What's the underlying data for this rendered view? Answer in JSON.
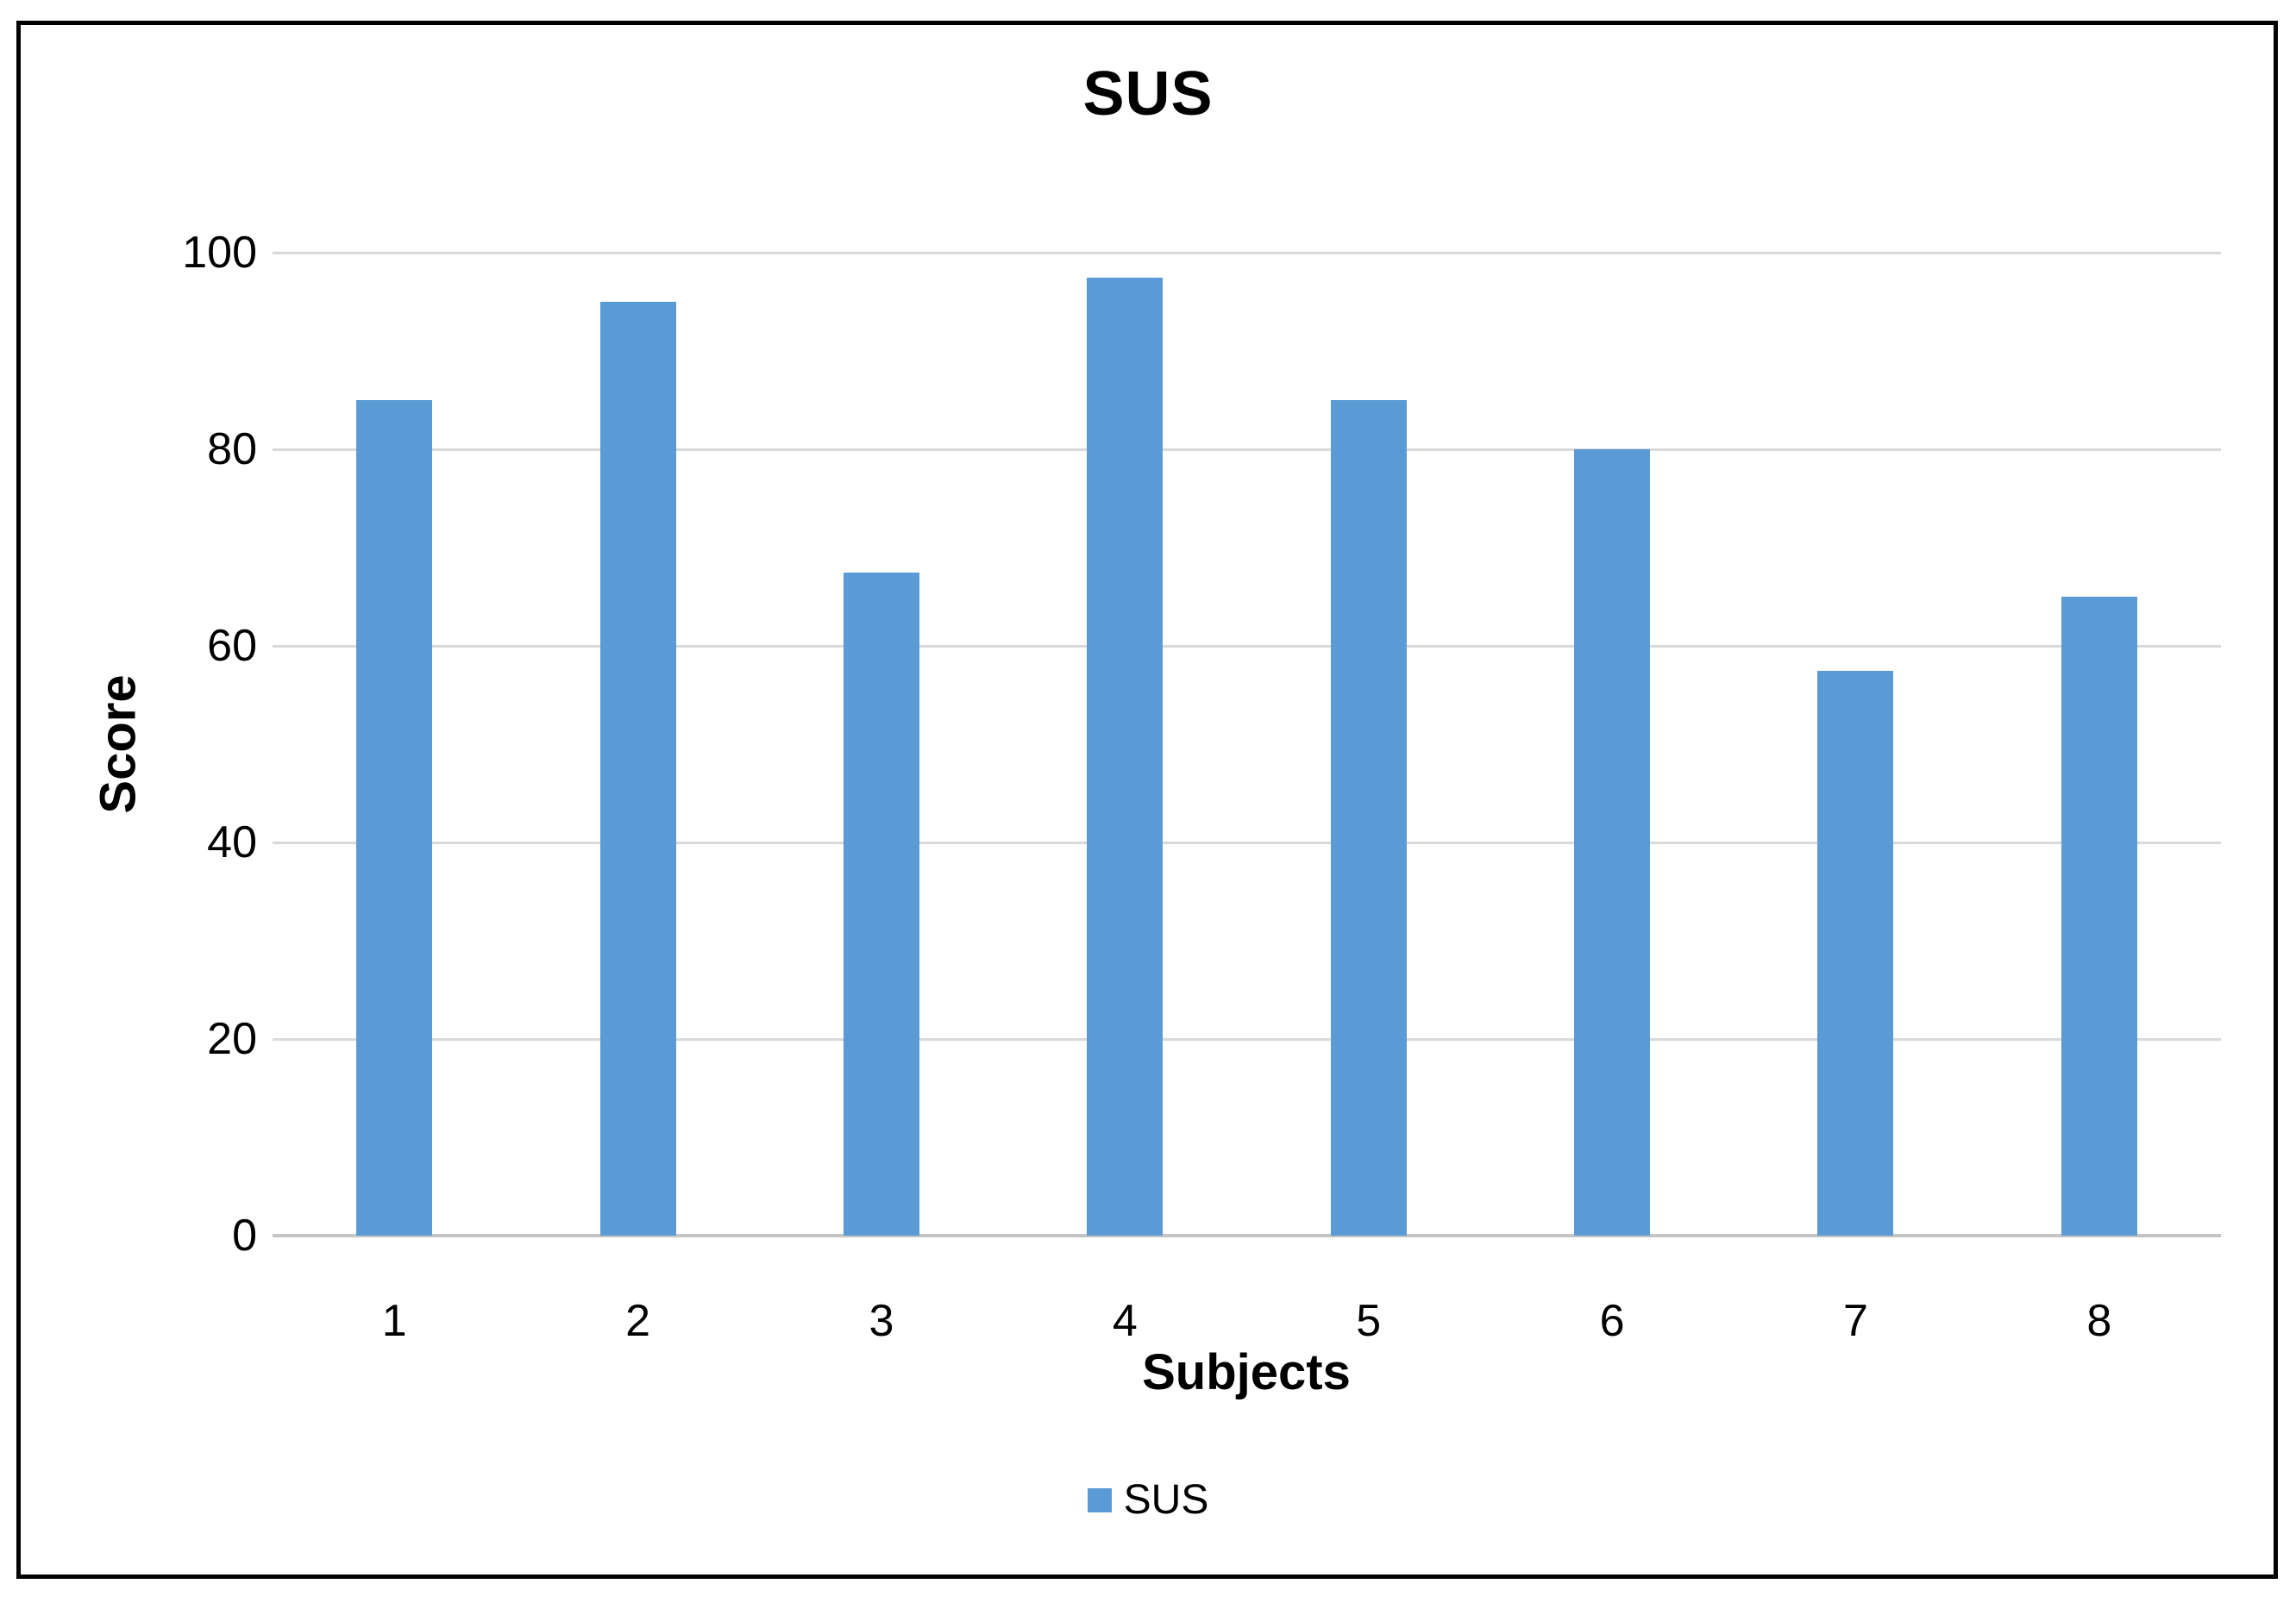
{
  "chart_data": {
    "type": "bar",
    "title": "SUS",
    "xlabel": "Subjects",
    "ylabel": "Score",
    "categories": [
      "1",
      "2",
      "3",
      "4",
      "5",
      "6",
      "7",
      "8"
    ],
    "series": [
      {
        "name": "SUS",
        "values": [
          85,
          95,
          67.5,
          97.5,
          85,
          80,
          57.5,
          65
        ]
      }
    ],
    "ylim": [
      0,
      100
    ],
    "yticks": [
      0,
      20,
      40,
      60,
      80,
      100
    ],
    "grid": true,
    "legend_position": "bottom-center",
    "colors": {
      "bar": "#5B9BD5",
      "gridline": "#D9D9D9",
      "axis_line": "#C4C4C4",
      "text": "#000000",
      "frame_border": "#000000",
      "background": "#FFFFFF"
    }
  }
}
